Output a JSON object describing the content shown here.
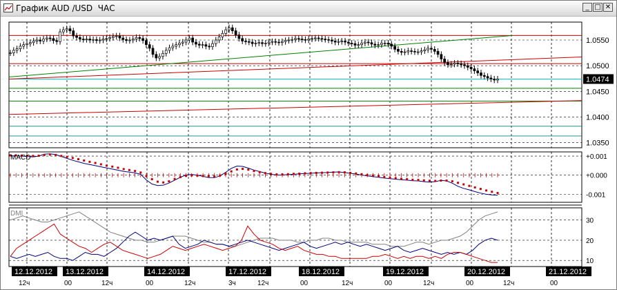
{
  "window": {
    "title": "График AUD /USD  ЧАС",
    "icon": "chart-icon",
    "buttons": [
      {
        "name": "minimize-button",
        "glyph": "_"
      },
      {
        "name": "maximize-button",
        "glyph": "□"
      },
      {
        "name": "close-button",
        "glyph": "✕"
      }
    ]
  },
  "chart_data": [
    {
      "type": "candlestick",
      "panel": "price",
      "y_ticks": [
        "1.0550",
        "1.0500",
        "1.0450",
        "1.0400",
        "1.0350"
      ],
      "y_tick_values": [
        1.055,
        1.05,
        1.045,
        1.04,
        1.035
      ],
      "ylim": [
        1.034,
        1.0585
      ],
      "current_price": "1.0474",
      "current_price_value": 1.0474,
      "colors": {
        "candle": "#000000",
        "current": "#00cccc",
        "trend_up": "#008000",
        "trend_red": "#cc0000",
        "green_level": "#008000",
        "teal_level": "#008080"
      },
      "close_series": [
        1.0525,
        1.053,
        1.0533,
        1.0538,
        1.0541,
        1.0543,
        1.0545,
        1.0548,
        1.055,
        1.0548,
        1.0552,
        1.0554,
        1.0553,
        1.0549,
        1.0547,
        1.0566,
        1.057,
        1.0572,
        1.0568,
        1.0558,
        1.0555,
        1.0552,
        1.0551,
        1.0552,
        1.055,
        1.0551,
        1.0549,
        1.055,
        1.0552,
        1.0553,
        1.0555,
        1.0557,
        1.0558,
        1.0554,
        1.0551,
        1.0549,
        1.055,
        1.0552,
        1.0555,
        1.0553,
        1.0549,
        1.0541,
        1.0534,
        1.0522,
        1.0515,
        1.0518,
        1.0524,
        1.053,
        1.0535,
        1.0538,
        1.0541,
        1.0544,
        1.0546,
        1.055,
        1.0554,
        1.0546,
        1.0542,
        1.054,
        1.0541,
        1.0538,
        1.0537,
        1.0543,
        1.055,
        1.0556,
        1.0563,
        1.057,
        1.0574,
        1.0568,
        1.056,
        1.0553,
        1.0548,
        1.0547,
        1.0546,
        1.0543,
        1.0544,
        1.0545,
        1.0543,
        1.0544,
        1.0546,
        1.0547,
        1.0546,
        1.0545,
        1.0547,
        1.0549,
        1.055,
        1.0551,
        1.0553,
        1.0552,
        1.0551,
        1.055,
        1.0552,
        1.0553,
        1.0554,
        1.0553,
        1.0552,
        1.0551,
        1.055,
        1.0548,
        1.0546,
        1.0547,
        1.0548,
        1.0546,
        1.0544,
        1.0543,
        1.054,
        1.0541,
        1.0544,
        1.0546,
        1.0545,
        1.0542,
        1.054,
        1.0541,
        1.0544,
        1.0544,
        1.0542,
        1.0538,
        1.0532,
        1.0528,
        1.0526,
        1.0527,
        1.0529,
        1.0528,
        1.0527,
        1.0527,
        1.0529,
        1.0531,
        1.0534,
        1.0532,
        1.0528,
        1.0522,
        1.0513,
        1.0506,
        1.0502,
        1.0503,
        1.0505,
        1.0504,
        1.0502,
        1.05,
        1.0497,
        1.0494,
        1.049,
        1.0486,
        1.0481,
        1.0479,
        1.0476,
        1.0474,
        1.0472,
        1.0474
      ]
    },
    {
      "type": "line",
      "panel": "macd",
      "label": "MACD",
      "y_ticks": [
        "+0.001",
        "+0.000",
        "-0.001"
      ],
      "y_tick_values": [
        0.001,
        0.0,
        -0.001
      ],
      "ylim": [
        -0.00142,
        0.00122
      ],
      "series": [
        {
          "name": "MACD",
          "color": "#000080",
          "values": [
            0.00101,
            0.00101,
            0.001,
            0.00098,
            0.00096,
            0.001,
            0.0011,
            0.00112,
            0.00108,
            0.00098,
            0.00088,
            0.00078,
            0.0007,
            0.00062,
            0.00056,
            0.0005,
            0.00044,
            0.00038,
            0.00032,
            0.00026,
            0.0002,
            0.00016,
            0.00012,
            5e-05,
            -0.00025,
            -0.00046,
            -0.00054,
            -0.00052,
            -0.00041,
            -0.00026,
            -0.00011,
            1e-05,
            4e-05,
            0.0,
            -6e-05,
            -0.00012,
            -0.00013,
            -4e-05,
            0.00015,
            0.00036,
            0.00048,
            0.00046,
            0.00037,
            0.00027,
            0.00019,
            0.00011,
            5e-05,
            1e-05,
            1e-05,
            3e-05,
            5e-05,
            7e-05,
            9e-05,
            0.0001,
            0.00012,
            0.00013,
            0.00014,
            0.00016,
            0.00017,
            0.00014,
            0.0001,
            6e-05,
            1e-05,
            -4e-05,
            -7e-05,
            -0.00011,
            -0.00015,
            -0.00018,
            -0.00021,
            -0.00024,
            -0.00026,
            -0.00029,
            -0.0003,
            -0.00034,
            -0.00036,
            -0.00034,
            -0.00027,
            -0.0003,
            -0.00042,
            -0.00058,
            -0.00069,
            -0.00077,
            -0.00086,
            -0.00094,
            -0.001,
            -0.00103,
            -0.00105
          ]
        },
        {
          "name": "Signal",
          "color": "#cc0000",
          "values": [
            0.00104,
            0.00104,
            0.00103,
            0.00102,
            0.00101,
            0.00102,
            0.00106,
            0.00108,
            0.00106,
            0.00101,
            0.00096,
            0.0009,
            0.00084,
            0.00077,
            0.0007,
            0.00064,
            0.00057,
            0.0005,
            0.00045,
            0.00039,
            0.00032,
            0.00027,
            0.00022,
            0.00014,
            -5e-05,
            -0.00021,
            -0.00034,
            -0.00038,
            -0.00032,
            -0.0002,
            -0.0001,
            -3e-05,
            -1e-05,
            -2e-05,
            -4e-05,
            -6e-05,
            -7e-05,
            -2e-05,
            8e-05,
            0.0002,
            0.0003,
            0.00033,
            0.00029,
            0.00022,
            0.00016,
            0.00011,
            7e-05,
            4e-05,
            4e-05,
            5e-05,
            7e-05,
            8e-05,
            0.0001,
            0.00011,
            0.00012,
            0.00013,
            0.00014,
            0.00015,
            0.00016,
            0.00015,
            0.00012,
            9e-05,
            5e-05,
            1e-05,
            -2e-05,
            -6e-05,
            -0.0001,
            -0.00013,
            -0.00016,
            -0.00019,
            -0.00021,
            -0.00024,
            -0.00025,
            -0.00027,
            -0.00029,
            -0.0003,
            -0.00028,
            -0.00028,
            -0.00032,
            -0.0004,
            -0.00048,
            -0.00056,
            -0.00064,
            -0.00072,
            -0.0008,
            -0.00087,
            -0.00093
          ]
        }
      ]
    },
    {
      "type": "line",
      "panel": "dmi",
      "label": "DMI",
      "y_ticks": [
        "30",
        "20",
        "10"
      ],
      "y_tick_values": [
        30,
        20,
        10
      ],
      "ylim": [
        7,
        36
      ],
      "series": [
        {
          "name": "ADX",
          "color": "#808080",
          "values": [
            30,
            31,
            32,
            31,
            30,
            29,
            29,
            30,
            31,
            32,
            33,
            34,
            32,
            30,
            28,
            26,
            24,
            23,
            22,
            21,
            20,
            20,
            19,
            19,
            20,
            21,
            22,
            22,
            22,
            21,
            20,
            19,
            19,
            18,
            18,
            17,
            17,
            18,
            19,
            20,
            21,
            21,
            21,
            20,
            20,
            20,
            19,
            19,
            20,
            20,
            21,
            21,
            20,
            20,
            19,
            19,
            19,
            19,
            18,
            18,
            18,
            17,
            17,
            17,
            18,
            19,
            19,
            18,
            19,
            20,
            20,
            21,
            22,
            24,
            27,
            30,
            32,
            33,
            34
          ]
        },
        {
          "name": "+DI",
          "color": "#000080",
          "values": [
            12,
            11,
            12,
            13,
            12,
            13,
            14,
            12,
            11,
            11,
            10,
            12,
            14,
            13,
            13,
            12,
            14,
            16,
            19,
            22,
            24,
            22,
            20,
            21,
            20,
            21,
            22,
            18,
            16,
            17,
            18,
            20,
            19,
            18,
            18,
            17,
            18,
            19,
            20,
            19,
            18,
            17,
            16,
            15,
            16,
            17,
            18,
            19,
            17,
            16,
            17,
            18,
            19,
            18,
            19,
            18,
            17,
            18,
            17,
            16,
            15,
            16,
            17,
            15,
            14,
            15,
            16,
            15,
            14,
            13,
            14,
            13,
            14,
            13,
            15,
            18,
            20,
            21,
            20
          ]
        },
        {
          "name": "-DI",
          "color": "#cc0000",
          "values": [
            12,
            16,
            18,
            20,
            22,
            24,
            26,
            28,
            23,
            21,
            19,
            17,
            16,
            14,
            16,
            18,
            19,
            17,
            15,
            14,
            13,
            12,
            11,
            12,
            13,
            15,
            17,
            16,
            15,
            16,
            17,
            18,
            17,
            16,
            15,
            16,
            17,
            20,
            27,
            23,
            20,
            19,
            18,
            16,
            15,
            16,
            17,
            15,
            14,
            13,
            13,
            12,
            12,
            11,
            11,
            11,
            11,
            11,
            12,
            12,
            13,
            12,
            11,
            12,
            11,
            12,
            12,
            11,
            12,
            11,
            13,
            14,
            14,
            13,
            12,
            11,
            10,
            9,
            9
          ]
        }
      ]
    }
  ],
  "time_axis": {
    "date_labels": [
      "12.12.2012",
      "13.12.2012",
      "14.12.2012",
      "17.12.2012",
      "18.12.2012",
      "19.12.2012",
      "20.12.2012",
      "21.12.2012"
    ],
    "hour_labels": [
      "12ч",
      "00",
      "12ч",
      "00",
      "12ч",
      "3ч",
      "12ч",
      "00",
      "12ч",
      "00",
      "12ч",
      "00",
      "12ч",
      "00"
    ]
  }
}
